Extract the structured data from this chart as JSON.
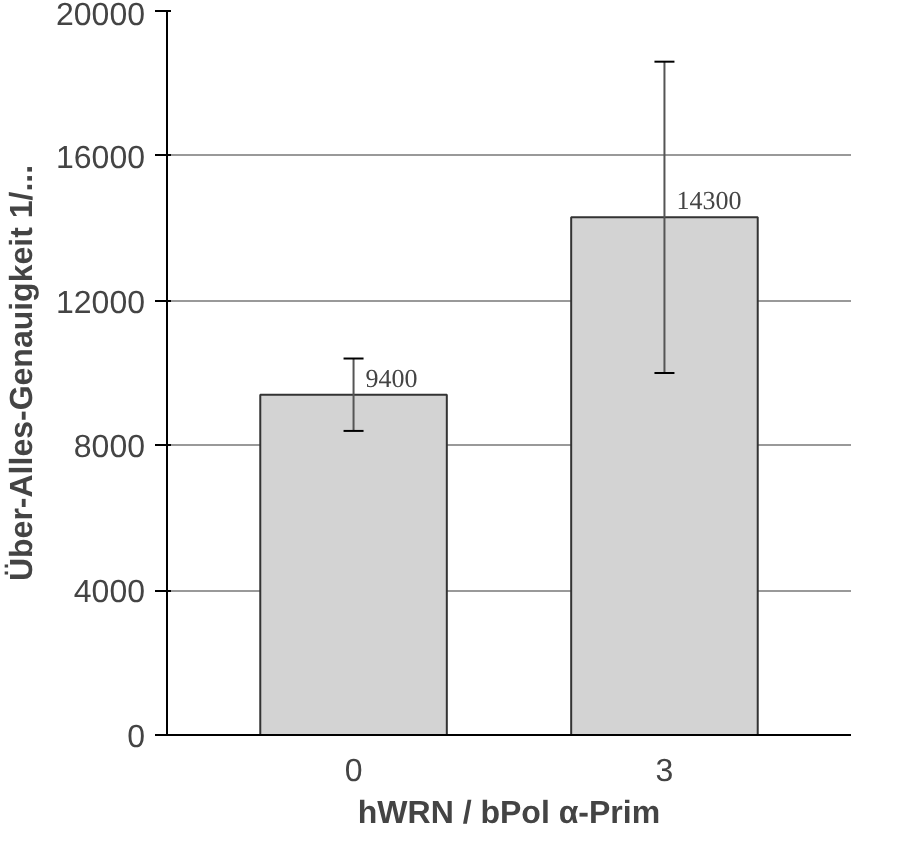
{
  "chart_data": {
    "type": "bar",
    "ylabel": "Über-Alles-Genauigkeit 1/...",
    "xlabel": "hWRN / bPol α-Prim",
    "categories": [
      "0",
      "3"
    ],
    "values": [
      9400,
      14300
    ],
    "errors": [
      1000,
      4300
    ],
    "color": "#d3d3d3",
    "data_labels": true,
    "ylim": [
      0,
      20000
    ],
    "yticks": [
      0,
      4000,
      8000,
      12000,
      16000,
      20000
    ],
    "grid": "y"
  }
}
